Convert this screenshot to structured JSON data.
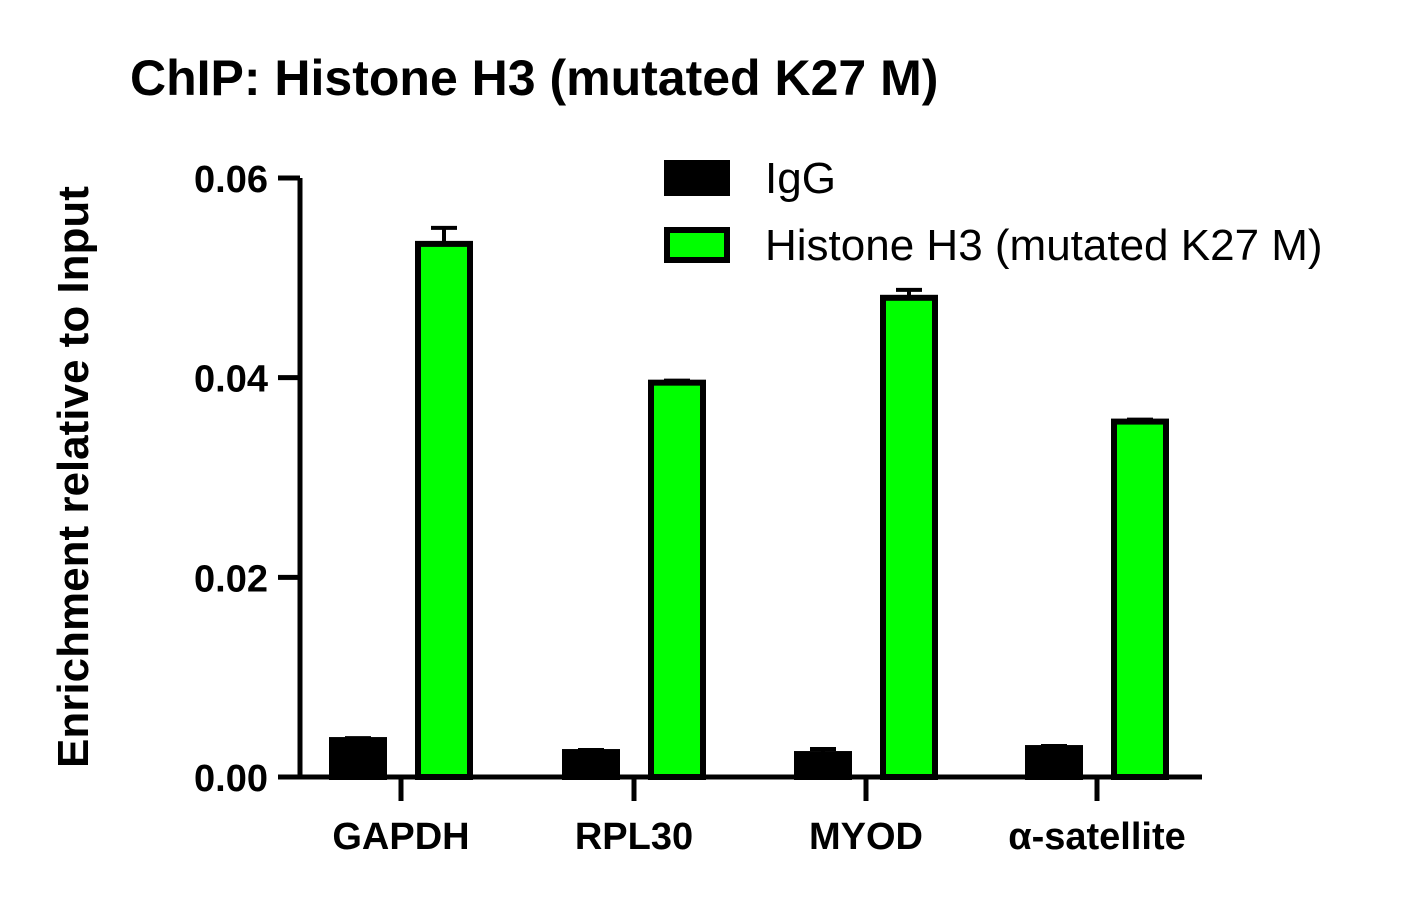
{
  "chart_data": {
    "type": "bar",
    "title": "ChIP: Histone H3 (mutated K27 M)",
    "xlabel": "",
    "ylabel": "Enrichment relative to Input",
    "categories": [
      "GAPDH",
      "RPL30",
      "MYOD",
      "α-satellite"
    ],
    "series": [
      {
        "name": "IgG",
        "color": "#000000",
        "values": [
          0.0037,
          0.0025,
          0.0023,
          0.0029
        ],
        "errors": [
          0.0002,
          0.0002,
          0.0005,
          0.0002
        ]
      },
      {
        "name": "Histone H3 (mutated K27 M)",
        "color": "#00ff00",
        "values": [
          0.0534,
          0.0395,
          0.048,
          0.0356
        ],
        "errors": [
          0.0016,
          0.0002,
          0.0008,
          0.0002
        ]
      }
    ],
    "ylim": [
      0,
      0.06
    ],
    "yticks": [
      "0.00",
      "0.02",
      "0.04",
      "0.06"
    ],
    "legend": "top-right",
    "grid": false
  }
}
